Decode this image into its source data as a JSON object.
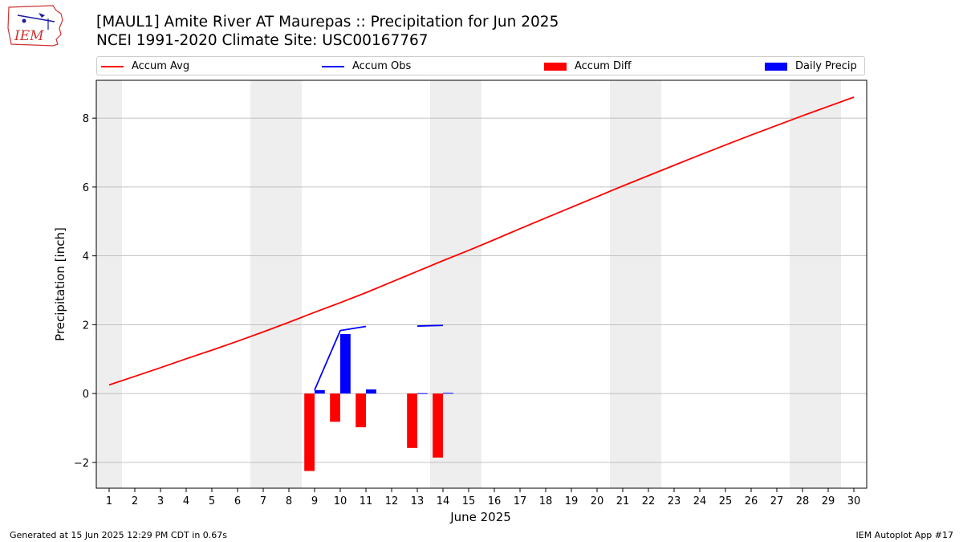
{
  "header": {
    "title_line1": "[MAUL1] Amite River  AT Maurepas :: Precipitation for Jun 2025",
    "title_line2": "NCEI 1991-2020 Climate Site: USC00167767",
    "logo_text": "IEM"
  },
  "footer": {
    "generated": "Generated at 15 Jun 2025 12:29 PM CDT in 0.67s",
    "app": "IEM Autoplot App #17"
  },
  "legend": [
    {
      "label": "Accum Avg",
      "color": "#ff0000",
      "kind": "line"
    },
    {
      "label": "Accum Obs",
      "color": "#0000ff",
      "kind": "line"
    },
    {
      "label": "Accum Diff",
      "color": "#ff0000",
      "kind": "bar"
    },
    {
      "label": "Daily Precip",
      "color": "#0000ff",
      "kind": "bar"
    }
  ],
  "chart_data": {
    "type": "bar",
    "xlabel": "June 2025",
    "ylabel": "Precipitation [inch]",
    "xlim": [
      0.5,
      30.5
    ],
    "ylim": [
      -2.75,
      9.1
    ],
    "x_ticks": [
      1,
      2,
      3,
      4,
      5,
      6,
      7,
      8,
      9,
      10,
      11,
      12,
      13,
      14,
      15,
      16,
      17,
      18,
      19,
      20,
      21,
      22,
      23,
      24,
      25,
      26,
      27,
      28,
      29,
      30
    ],
    "y_ticks": [
      -2,
      0,
      2,
      4,
      6,
      8
    ],
    "y_tick_labels": [
      "−2",
      "0",
      "2",
      "4",
      "6",
      "8"
    ],
    "grid": "y",
    "weekend_shading": [
      [
        0.5,
        1.5
      ],
      [
        6.5,
        8.5
      ],
      [
        13.5,
        15.5
      ],
      [
        20.5,
        22.5
      ],
      [
        27.5,
        29.5
      ]
    ],
    "series": [
      {
        "name": "Accum Avg",
        "type": "line",
        "color": "#ff0000",
        "x": [
          1,
          2,
          3,
          4,
          5,
          6,
          7,
          8,
          9,
          10,
          11,
          12,
          13,
          14,
          15,
          16,
          17,
          18,
          19,
          20,
          21,
          22,
          23,
          24,
          25,
          26,
          27,
          28,
          29,
          30
        ],
        "values": [
          0.25,
          0.5,
          0.75,
          1.01,
          1.26,
          1.52,
          1.79,
          2.07,
          2.36,
          2.64,
          2.93,
          3.24,
          3.55,
          3.86,
          4.16,
          4.47,
          4.79,
          5.1,
          5.41,
          5.72,
          6.03,
          6.33,
          6.63,
          6.93,
          7.22,
          7.51,
          7.79,
          8.07,
          8.34,
          8.61
        ]
      },
      {
        "name": "Accum Obs",
        "type": "line",
        "color": "#0000ff",
        "segments": [
          {
            "x": [
              9,
              10,
              11
            ],
            "values": [
              0.1,
              1.83,
              1.95
            ]
          },
          {
            "x": [
              13,
              14
            ],
            "values": [
              1.96,
              1.98
            ]
          }
        ]
      },
      {
        "name": "Accum Diff",
        "type": "bar",
        "color": "#ff0000",
        "x": [
          9,
          10,
          11,
          13,
          14
        ],
        "values": [
          -2.25,
          -0.82,
          -0.98,
          -1.58,
          -1.86
        ]
      },
      {
        "name": "Daily Precip",
        "type": "bar",
        "color": "#0000ff",
        "x": [
          9,
          10,
          11,
          13,
          14
        ],
        "values": [
          0.1,
          1.73,
          0.12,
          0.01,
          0.02
        ]
      }
    ]
  }
}
